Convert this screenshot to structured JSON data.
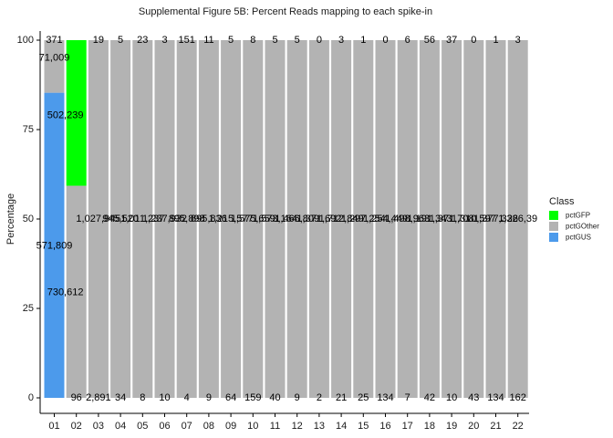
{
  "chart_data": {
    "type": "bar",
    "stacked": true,
    "title": "Supplemental Figure 5B: Percent Reads mapping to each spike-in",
    "xlabel": "",
    "ylabel": "Percentage",
    "ylim": [
      0,
      100
    ],
    "yticks": [
      0,
      25,
      50,
      75,
      100
    ],
    "grid": false,
    "legend": {
      "title": "Class",
      "position": "right"
    },
    "categories": [
      "01",
      "02",
      "03",
      "04",
      "05",
      "06",
      "07",
      "08",
      "09",
      "10",
      "11",
      "12",
      "13",
      "14",
      "15",
      "16",
      "17",
      "18",
      "19",
      "20",
      "21",
      "22"
    ],
    "series": [
      {
        "name": "pctGFP",
        "color": "#00ff00",
        "values": [
          0,
          40.7,
          0,
          0,
          0,
          0,
          0,
          0,
          0,
          0,
          0,
          0,
          0,
          0,
          0,
          0,
          0,
          0,
          0,
          0,
          0,
          0
        ]
      },
      {
        "name": "pctGOther",
        "color": "#b3b3b3",
        "values": [
          14.7,
          59.3,
          100,
          100,
          100,
          100,
          100,
          100,
          100,
          100,
          100,
          100,
          100,
          100,
          100,
          100,
          100,
          100,
          100,
          100,
          100,
          100
        ]
      },
      {
        "name": "pctGUS",
        "color": "#4c9aeb",
        "values": [
          85.3,
          0,
          0,
          0,
          0,
          0,
          0,
          0,
          0,
          0,
          0,
          0,
          0,
          0,
          0,
          0,
          0,
          0,
          0,
          0,
          0,
          0
        ]
      }
    ],
    "labels_top": [
      "371",
      "",
      "19",
      "5",
      "23",
      "3",
      "151",
      "11",
      "5",
      "8",
      "5",
      "5",
      "0",
      "3",
      "1",
      "0",
      "6",
      "56",
      "37",
      "0",
      "1",
      "3"
    ],
    "labels_bottom": [
      "",
      "96",
      "2,891",
      "34",
      "8",
      "10",
      "4",
      "9",
      "64",
      "159",
      "40",
      "9",
      "2",
      "21",
      "25",
      "134",
      "7",
      "42",
      "10",
      "43",
      "134",
      "162"
    ],
    "labels_mid": [
      "",
      "",
      "1,027,945",
      "945,520",
      "1,011,237",
      "1,237,932",
      "895,898",
      "895,836",
      "1,215,577",
      "1,575,659",
      "1,573,164",
      "1,466,809",
      "1,371,692",
      "1,712,849",
      "1,297,254",
      "1,254,449",
      "1,498,963",
      "1,191,343",
      "1,371,708",
      "1,310,597",
      "1,377,326",
      "1,326,39"
    ],
    "annotations": [
      {
        "text": "71,009",
        "category": "01",
        "y": 95
      },
      {
        "text": "502,239",
        "category": "01",
        "x_offset": 0.5,
        "y": 79
      },
      {
        "text": "571,809",
        "category": "01",
        "y": 42.5
      },
      {
        "text": "730,612",
        "category": "01",
        "x_offset": 0.5,
        "y": 29.5
      }
    ]
  }
}
